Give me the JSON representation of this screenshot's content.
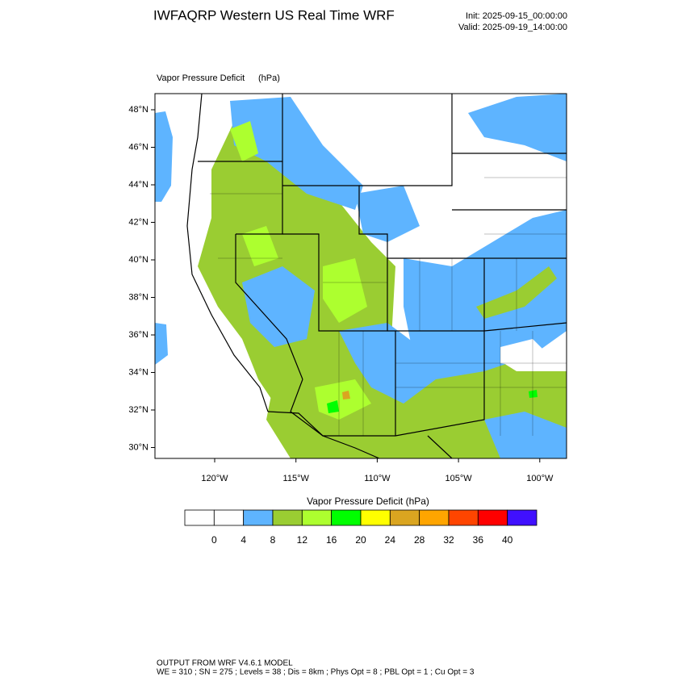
{
  "header": {
    "title": "IWFAQRP Western US Real Time WRF",
    "init": "Init: 2025-09-15_00:00:00",
    "valid": "Valid: 2025-09-19_14:00:00"
  },
  "map": {
    "field": "Vapor Pressure Deficit",
    "units": "(hPa)",
    "lat_labels": [
      "48°N",
      "46°N",
      "44°N",
      "42°N",
      "40°N",
      "38°N",
      "36°N",
      "34°N",
      "32°N",
      "30°N"
    ],
    "lon_labels": [
      "120°W",
      "115°W",
      "110°W",
      "105°W",
      "100°W"
    ]
  },
  "colorbar": {
    "title": "Vapor Pressure Deficit  (hPa)",
    "colors": [
      "#ffffff",
      "#ffffff",
      "#5eb4ff",
      "#9acd32",
      "#adff2f",
      "#00ff00",
      "#ffff00",
      "#daa520",
      "#ffa500",
      "#ff4500",
      "#ff0000",
      "#4010ff"
    ],
    "ticks": [
      0,
      4,
      8,
      12,
      16,
      20,
      24,
      28,
      32,
      36,
      40
    ]
  },
  "footer": {
    "line1": "OUTPUT FROM WRF V4.6.1 MODEL",
    "line2": "WE = 310 ; SN = 275 ; Levels = 38 ; Dis = 8km ; Phys Opt = 8 ; PBL Opt = 1 ; Cu Opt = 3"
  }
}
